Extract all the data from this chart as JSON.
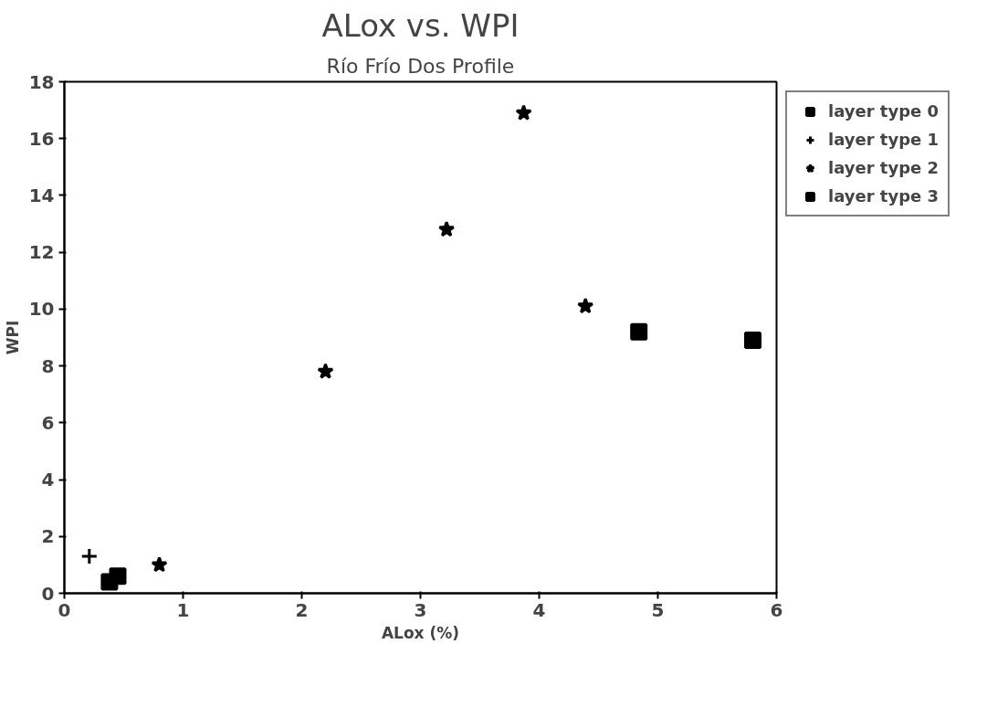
{
  "chart_data": {
    "type": "scatter",
    "title": "ALox vs. WPI",
    "subtitle": "Río Frío Dos Profile",
    "xlabel": "ALox (%)",
    "ylabel": "WPI",
    "series": [
      {
        "name": "layer type 0",
        "color": "#000000",
        "marker": "square",
        "x": [
          0.38,
          0.45
        ],
        "values": [
          0.4,
          0.6
        ]
      },
      {
        "name": "layer type 1",
        "color": "#000000",
        "marker": "cross",
        "x": [
          0.21
        ],
        "values": [
          1.3
        ]
      },
      {
        "name": "layer type 2",
        "color": "#000000",
        "marker": "star",
        "x": [
          0.8,
          2.2,
          3.22,
          3.87,
          4.39
        ],
        "values": [
          1.0,
          7.8,
          12.8,
          16.9,
          10.1
        ]
      },
      {
        "name": "layer type 3",
        "color": "#000000",
        "marker": "square",
        "x": [
          4.84,
          5.8
        ],
        "values": [
          9.2,
          8.9
        ]
      }
    ],
    "xlim": [
      0,
      6
    ],
    "xticks": [
      0,
      1,
      2,
      3,
      4,
      5,
      6
    ],
    "ylim": [
      0,
      18
    ],
    "yticks": [
      0,
      2,
      4,
      6,
      8,
      10,
      12,
      14,
      16,
      18
    ],
    "grid": false,
    "legend": "right"
  }
}
